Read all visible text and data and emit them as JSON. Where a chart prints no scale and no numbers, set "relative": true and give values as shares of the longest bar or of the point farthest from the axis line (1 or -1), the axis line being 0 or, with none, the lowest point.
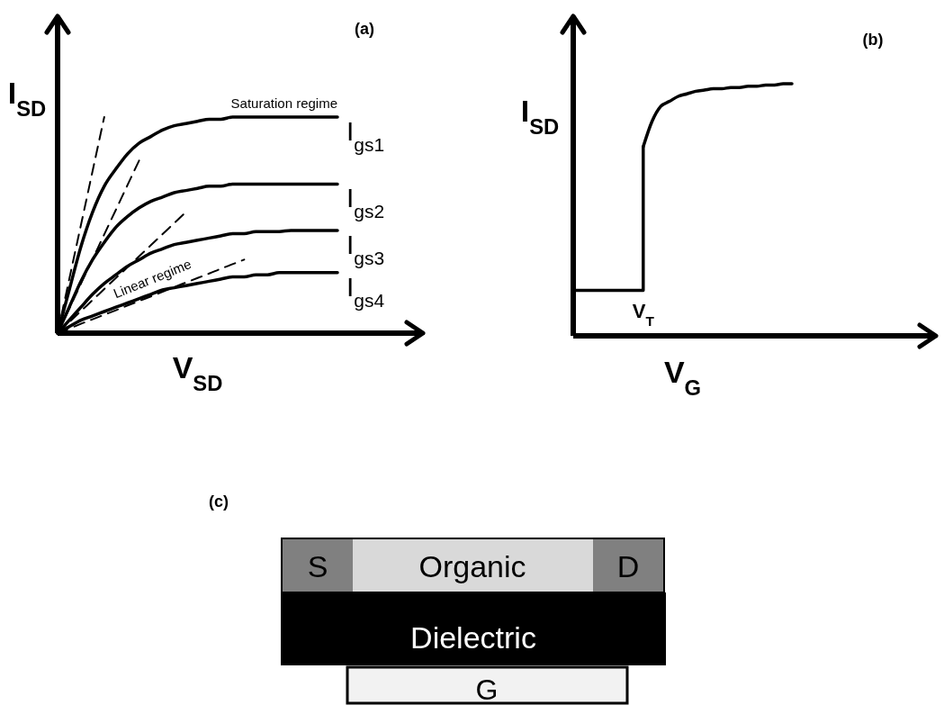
{
  "chart_data": [
    {
      "type": "line",
      "xlabel": "V$_{SD}$",
      "ylabel": "I$_{SD}$",
      "relative": true,
      "categories": [
        null,
        null,
        null,
        null,
        null,
        null,
        null,
        null,
        null,
        null,
        null,
        null,
        null,
        null,
        null,
        null,
        null,
        null,
        null,
        null,
        null,
        null,
        null,
        null,
        null
      ],
      "series": [
        {
          "name": "I$_{gs1}$",
          "color": "#000000",
          "values": [
            0,
            0.2,
            0.4,
            0.56,
            0.68,
            0.76,
            0.83,
            0.88,
            0.91,
            0.94,
            0.96,
            0.97,
            0.98,
            0.99,
            0.99,
            1,
            1,
            1,
            1,
            1,
            1,
            1,
            1,
            1,
            1
          ]
        },
        {
          "name": "I$_{gs2}$",
          "color": "#000000",
          "values": [
            0,
            0.12,
            0.24,
            0.34,
            0.42,
            0.49,
            0.54,
            0.58,
            0.61,
            0.63,
            0.65,
            0.66,
            0.67,
            0.68,
            0.68,
            0.69,
            0.69,
            0.69,
            0.69,
            0.69,
            0.69,
            0.69,
            0.69,
            0.69,
            0.69
          ]
        },
        {
          "name": "I$_{gs3}$",
          "color": "#000000",
          "values": [
            0,
            0.06,
            0.12,
            0.18,
            0.23,
            0.27,
            0.31,
            0.34,
            0.37,
            0.39,
            0.41,
            0.42,
            0.43,
            0.44,
            0.45,
            0.46,
            0.46,
            0.47,
            0.47,
            0.47,
            0.475,
            0.475,
            0.475,
            0.475,
            0.475
          ]
        },
        {
          "name": "I$_{gs4}$",
          "color": "#000000",
          "values": [
            0,
            0.03,
            0.06,
            0.08,
            0.1,
            0.12,
            0.14,
            0.16,
            0.18,
            0.2,
            0.21,
            0.22,
            0.23,
            0.24,
            0.25,
            0.26,
            0.26,
            0.27,
            0.27,
            0.28,
            0.28,
            0.28,
            0.28,
            0.28,
            0.28
          ]
        },
        {
          "color": "#000000",
          "line_style": "dashed",
          "values": [
            0,
            0.25,
            0.5,
            0.75,
            1,
            null,
            null,
            null,
            null,
            null,
            null,
            null,
            null,
            null,
            null,
            null,
            null,
            null,
            null,
            null,
            null,
            null,
            null,
            null,
            null
          ]
        },
        {
          "color": "#000000",
          "line_style": "dashed",
          "values": [
            0,
            0.114,
            0.229,
            0.343,
            0.457,
            0.571,
            0.686,
            0.8,
            null,
            null,
            null,
            null,
            null,
            null,
            null,
            null,
            null,
            null,
            null,
            null,
            null,
            null,
            null,
            null,
            null
          ]
        },
        {
          "color": "#000000",
          "line_style": "dashed",
          "values": [
            0,
            0.051,
            0.102,
            0.153,
            0.204,
            0.255,
            0.305,
            0.356,
            0.407,
            0.458,
            0.509,
            0.56,
            null,
            null,
            null,
            null,
            null,
            null,
            null,
            null,
            null,
            null,
            null,
            null,
            null
          ]
        },
        {
          "color": "#000000",
          "line_style": "dashed",
          "values": [
            0,
            0.021,
            0.043,
            0.064,
            0.085,
            0.106,
            0.128,
            0.149,
            0.17,
            0.191,
            0.213,
            0.234,
            0.255,
            0.276,
            0.298,
            0.319,
            0.34,
            null,
            null,
            null,
            null,
            null,
            null,
            null,
            null
          ]
        }
      ],
      "annotations": [
        "(a)",
        "Saturation regime",
        "Linear regime"
      ]
    },
    {
      "type": "line",
      "xlabel": "V$_{G}$",
      "ylabel": "I$_{SD}$",
      "relative": true,
      "categories": [
        null,
        null,
        null,
        null,
        null,
        null,
        null,
        null,
        null,
        null,
        null,
        null,
        null,
        null,
        null,
        null,
        null,
        null,
        null,
        null,
        null,
        null,
        null,
        null,
        null,
        null
      ],
      "series": [
        {
          "type": "step",
          "color": "#000000",
          "values": [
            0.18,
            0.18,
            0.18,
            0.18,
            0.18,
            0.18,
            0.18,
            0.18,
            0.75,
            null,
            null,
            null,
            null,
            null,
            null,
            null,
            null,
            null,
            null,
            null,
            null,
            null,
            null,
            null,
            null,
            null
          ]
        },
        {
          "color": "#000000",
          "values": [
            null,
            null,
            null,
            null,
            null,
            null,
            null,
            null,
            0.75,
            0.85,
            0.91,
            0.93,
            0.95,
            0.96,
            0.97,
            0.975,
            0.98,
            0.98,
            0.985,
            0.985,
            0.99,
            0.99,
            0.995,
            0.995,
            1,
            1
          ]
        }
      ],
      "annotations": [
        "(b)",
        "V$_{T}$"
      ]
    },
    {
      "type": "other",
      "title": "(c)",
      "annotations": [
        "S",
        "Organic",
        "D",
        "Dielectric",
        "G"
      ]
    }
  ]
}
